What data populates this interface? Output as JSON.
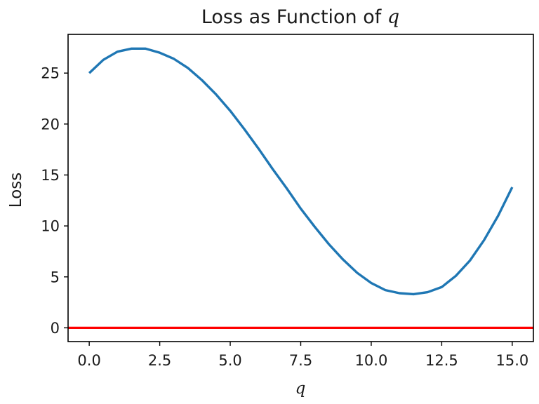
{
  "chart_data": {
    "type": "line",
    "title_prefix": "Loss as Function of ",
    "title_var": "q",
    "xlabel": "q",
    "ylabel": "Loss",
    "xlim": [
      -0.75,
      15.75
    ],
    "ylim": [
      -1.35,
      28.8
    ],
    "xticks": [
      0.0,
      2.5,
      5.0,
      7.5,
      10.0,
      12.5,
      15.0
    ],
    "xtick_labels": [
      "0.0",
      "2.5",
      "5.0",
      "7.5",
      "10.0",
      "12.5",
      "15.0"
    ],
    "yticks": [
      0,
      5,
      10,
      15,
      20,
      25
    ],
    "ytick_labels": [
      "0",
      "5",
      "10",
      "15",
      "20",
      "25"
    ],
    "grid": false,
    "legend": "none",
    "series": [
      {
        "color": "#1f77b4",
        "x": [
          0,
          0.5,
          1,
          1.5,
          2,
          2.5,
          3,
          3.5,
          4,
          4.5,
          5,
          5.5,
          6,
          6.5,
          7,
          7.5,
          8,
          8.5,
          9,
          9.5,
          10,
          10.5,
          11,
          11.5,
          12,
          12.5,
          13,
          13.5,
          14,
          14.5,
          15
        ],
        "y": [
          25.0,
          26.3,
          27.1,
          27.4,
          27.4,
          27.0,
          26.4,
          25.5,
          24.3,
          22.9,
          21.3,
          19.5,
          17.6,
          15.6,
          13.7,
          11.7,
          9.9,
          8.2,
          6.7,
          5.4,
          4.4,
          3.7,
          3.4,
          3.3,
          3.5,
          4.0,
          5.1,
          6.6,
          8.6,
          11.0,
          13.8
        ]
      },
      {
        "color": "#ff0000",
        "x": [
          -0.75,
          15.75
        ],
        "y": [
          0,
          0
        ]
      }
    ]
  }
}
